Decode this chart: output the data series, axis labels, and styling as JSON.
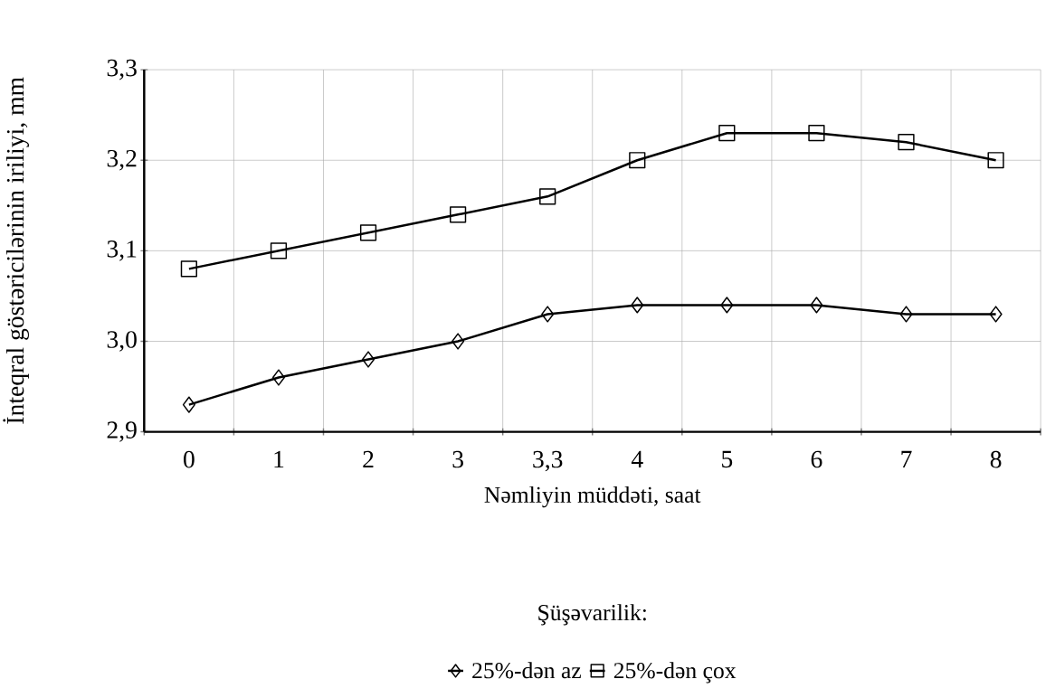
{
  "chart_data": {
    "type": "line",
    "xlabel": "Nəmliyin müddəti, saat",
    "ylabel": "İnteqral göstəricilərinin iriliyi, mm",
    "legend_title": "Şüşəvarilik:",
    "categories": [
      "0",
      "1",
      "2",
      "3",
      "3,3",
      "4",
      "5",
      "6",
      "7",
      "8"
    ],
    "series": [
      {
        "name": "25%-dən az",
        "color": "#000000",
        "marker": "diamond",
        "values": [
          2.93,
          2.96,
          2.98,
          3.0,
          3.03,
          3.04,
          3.04,
          3.04,
          3.03,
          3.03
        ]
      },
      {
        "name": "25%-dən çox",
        "color": "#000000",
        "marker": "square",
        "values": [
          3.08,
          3.1,
          3.12,
          3.14,
          3.16,
          3.2,
          3.23,
          3.23,
          3.22,
          3.2
        ]
      }
    ],
    "ylim": [
      2.9,
      3.3
    ],
    "yticks": [
      {
        "value": 2.9,
        "label": "2,9"
      },
      {
        "value": 3.0,
        "label": "3,0"
      },
      {
        "value": 3.1,
        "label": "3,1"
      },
      {
        "value": 3.2,
        "label": "3,2"
      },
      {
        "value": 3.3,
        "label": "3,3"
      }
    ],
    "grid": true,
    "legend": "bottom",
    "line_style": "solid"
  }
}
